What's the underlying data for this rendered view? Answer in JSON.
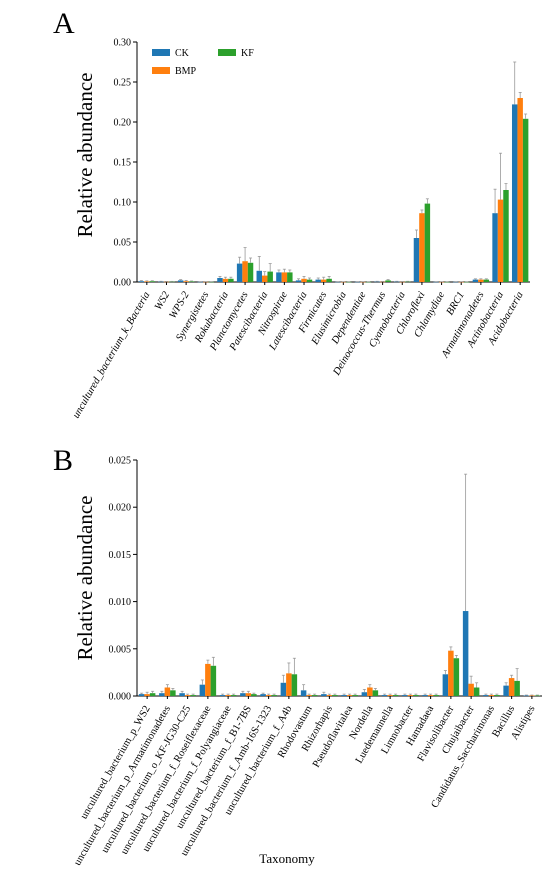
{
  "colors": {
    "CK": "#1f77b4",
    "BMP": "#ff7f0e",
    "KF": "#2ca02c",
    "error": "#999999"
  },
  "chart_data": [
    {
      "type": "bar",
      "panel_label": "A",
      "ylabel": "Relative abundance",
      "xlabel": "",
      "ylim": [
        0,
        0.3
      ],
      "yticks": [
        "0.00",
        "0.05",
        "0.10",
        "0.15",
        "0.20",
        "0.25",
        "0.30"
      ],
      "legend": {
        "placement": "top-left",
        "entries": [
          "CK",
          "BMP",
          "KF"
        ]
      },
      "categories": [
        "uncultured_bacterium_k_Bacteria",
        "WS2",
        "WPS-2",
        "Synergistetes",
        "Rokubacteria",
        "Planctomycetes",
        "Patescibacteria",
        "Nitrospirae",
        "Latescibacteria",
        "Firmicutes",
        "Elusimicrobia",
        "Dependentiae",
        "Deinococcus-Thermus",
        "Cyanobacteria",
        "Chloroflexi",
        "Chlamydiae",
        "BRC1",
        "Armatimonadetes",
        "Actinobacteria",
        "Acidobacteria"
      ],
      "series": [
        {
          "name": "CK",
          "values": [
            0.001,
            0.0005,
            0.002,
            0.0003,
            0.005,
            0.023,
            0.014,
            0.012,
            0.002,
            0.003,
            0.0003,
            0.0003,
            0.0005,
            0.0005,
            0.055,
            0.0003,
            0.0003,
            0.003,
            0.086,
            0.222
          ],
          "errors": [
            0.0008,
            0.0004,
            0.001,
            0.0002,
            0.002,
            0.008,
            0.018,
            0.003,
            0.002,
            0.002,
            0.0002,
            0.0002,
            0.0004,
            0.0004,
            0.01,
            0.0002,
            0.0002,
            0.001,
            0.03,
            0.053
          ]
        },
        {
          "name": "BMP",
          "values": [
            0.0008,
            0.0004,
            0.001,
            0.0003,
            0.004,
            0.026,
            0.008,
            0.012,
            0.004,
            0.003,
            0.0002,
            0.0002,
            0.0004,
            0.0003,
            0.086,
            0.0002,
            0.0002,
            0.003,
            0.103,
            0.23
          ],
          "errors": [
            0.0006,
            0.0003,
            0.001,
            0.0002,
            0.002,
            0.017,
            0.005,
            0.004,
            0.003,
            0.003,
            0.0002,
            0.0002,
            0.0003,
            0.0003,
            0.004,
            0.0002,
            0.0002,
            0.001,
            0.058,
            0.007
          ]
        },
        {
          "name": "KF",
          "values": [
            0.001,
            0.0005,
            0.0008,
            0.0003,
            0.004,
            0.024,
            0.013,
            0.012,
            0.003,
            0.004,
            0.0002,
            0.0002,
            0.002,
            0.0005,
            0.098,
            0.0002,
            0.0002,
            0.003,
            0.115,
            0.204
          ],
          "errors": [
            0.0006,
            0.0003,
            0.0005,
            0.0002,
            0.002,
            0.006,
            0.01,
            0.003,
            0.002,
            0.003,
            0.0002,
            0.0002,
            0.001,
            0.0004,
            0.006,
            0.0002,
            0.0002,
            0.001,
            0.008,
            0.006
          ]
        }
      ]
    },
    {
      "type": "bar",
      "panel_label": "B",
      "ylabel": "Relative abundance",
      "xlabel": "Taxonomy",
      "ylim": [
        0,
        0.025
      ],
      "yticks": [
        "0.000",
        "0.005",
        "0.010",
        "0.015",
        "0.020",
        "0.025"
      ],
      "categories": [
        "uncultured_bacterium_p_WS2",
        "uncultured_bacterium_p_Armatimonadetes",
        "uncultured_bacterium_o_KF-JG30-C25",
        "uncultured_bacterium_f_Roseiflexaceae",
        "uncultured_bacterium_f_Polyangiaceae",
        "uncultured_bacterium_f_B1-7BS",
        "uncultured_bacterium_f_Amb-16S-1323",
        "uncultured_bacterium_f_A4b",
        "Rhodovastum",
        "Rhizorhapis",
        "Pseudoflavitalea",
        "Nordella",
        "Luedemannella",
        "Limnobacter",
        "Hamadaea",
        "Flavisolibacter",
        "Chujaibacter",
        "Candidatus_Saccharimonas",
        "Bacillus",
        "Alistipes"
      ],
      "series": [
        {
          "name": "CK",
          "values": [
            0.0002,
            0.0003,
            0.0003,
            0.0012,
            0.0001,
            0.0003,
            0.0002,
            0.0014,
            0.0006,
            0.0002,
            0.0001,
            0.0004,
            0.0001,
            0.0001,
            0.0001,
            0.0023,
            0.009,
            0.0001,
            0.0011,
            5e-05
          ],
          "errors": [
            0.0001,
            0.0002,
            0.0002,
            0.0005,
            0.0001,
            0.0002,
            0.0001,
            0.0008,
            0.0006,
            0.0002,
            0.0001,
            0.0003,
            0.0001,
            0.0001,
            0.0001,
            0.0004,
            0.0145,
            0.0001,
            0.0003,
            5e-05
          ]
        },
        {
          "name": "BMP",
          "values": [
            0.0002,
            0.0009,
            0.0001,
            0.0034,
            0.0001,
            0.0003,
            0.0001,
            0.0024,
            0.0001,
            0.0001,
            0.0001,
            0.0009,
            0.0001,
            0.0001,
            0.0001,
            0.0048,
            0.0013,
            0.0001,
            0.0019,
            5e-05
          ],
          "errors": [
            0.0002,
            0.0003,
            0.0001,
            0.0004,
            0.0001,
            0.0002,
            0.0001,
            0.0011,
            0.0001,
            0.0001,
            0.0001,
            0.0003,
            0.0001,
            0.0001,
            0.0001,
            0.0004,
            0.0008,
            0.0001,
            0.0003,
            5e-05
          ]
        },
        {
          "name": "KF",
          "values": [
            0.0003,
            0.0006,
            0.0001,
            0.0032,
            0.0001,
            0.0002,
            0.0001,
            0.0023,
            0.0001,
            0.0001,
            0.0001,
            0.0006,
            0.0001,
            0.0001,
            0.0001,
            0.004,
            0.0009,
            0.0001,
            0.0016,
            5e-05
          ],
          "errors": [
            0.0002,
            0.0002,
            0.0001,
            0.0009,
            0.0001,
            0.0001,
            0.0001,
            0.0017,
            0.0001,
            0.0001,
            0.0001,
            0.0002,
            0.0001,
            0.0001,
            0.0001,
            0.0003,
            0.0005,
            0.0001,
            0.0013,
            5e-05
          ]
        }
      ]
    }
  ]
}
